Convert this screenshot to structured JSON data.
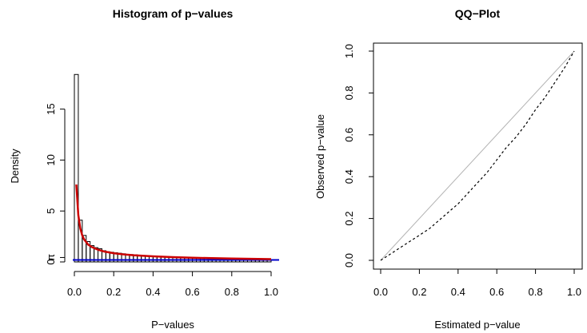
{
  "chart_data": [
    {
      "type": "bar",
      "subtype": "histogram-with-density",
      "title": "Histogram of p−values",
      "xlabel": "P−values",
      "ylabel": "Density",
      "xlim": [
        0,
        1
      ],
      "ylim": [
        0,
        18.5
      ],
      "x_ticks": [
        0,
        0.2,
        0.4,
        0.6,
        0.8,
        1
      ],
      "x_tick_labels": [
        "0.0",
        "0.2",
        "0.4",
        "0.6",
        "0.8",
        "1.0"
      ],
      "y_ticks": [
        0,
        5,
        10,
        15
      ],
      "y_tick_labels": [
        "0",
        "5",
        "10",
        "15"
      ],
      "y_extra_label": {
        "value": 0.2,
        "text": "π"
      },
      "bin_width": 0.02,
      "bin_edges_start": 0,
      "values": [
        18.4,
        4.1,
        2.6,
        2.0,
        1.6,
        1.4,
        1.3,
        1.1,
        1.0,
        0.95,
        0.9,
        0.85,
        0.8,
        0.75,
        0.72,
        0.7,
        0.66,
        0.63,
        0.6,
        0.58,
        0.56,
        0.54,
        0.52,
        0.5,
        0.48,
        0.46,
        0.44,
        0.43,
        0.42,
        0.4,
        0.39,
        0.38,
        0.37,
        0.36,
        0.35,
        0.34,
        0.33,
        0.32,
        0.31,
        0.3,
        0.29,
        0.28,
        0.27,
        0.27,
        0.26,
        0.25,
        0.25,
        0.24,
        0.24,
        0.23
      ],
      "density_curve": {
        "color": "#cc0000",
        "x": [
          0.01,
          0.02,
          0.03,
          0.04,
          0.05,
          0.07,
          0.09,
          0.12,
          0.15,
          0.2,
          0.25,
          0.3,
          0.4,
          0.5,
          0.6,
          0.7,
          0.8,
          0.9,
          1.0
        ],
        "y": [
          7.6,
          4.6,
          3.3,
          2.6,
          2.2,
          1.7,
          1.45,
          1.2,
          1.03,
          0.85,
          0.74,
          0.66,
          0.55,
          0.47,
          0.41,
          0.37,
          0.33,
          0.3,
          0.27
        ]
      },
      "hline": {
        "value": 0.2,
        "color": "#0000cc"
      },
      "grid": false
    },
    {
      "type": "line",
      "title": "QQ−Plot",
      "xlabel": "Estimated p−value",
      "ylabel": "Observed p−value",
      "xlim": [
        0,
        1
      ],
      "ylim": [
        0,
        1
      ],
      "x_ticks": [
        0,
        0.2,
        0.4,
        0.6,
        0.8,
        1
      ],
      "x_tick_labels": [
        "0.0",
        "0.2",
        "0.4",
        "0.6",
        "0.8",
        "1.0"
      ],
      "y_ticks": [
        0,
        0.2,
        0.4,
        0.6,
        0.8,
        1
      ],
      "y_tick_labels": [
        "0.0",
        "0.2",
        "0.4",
        "0.6",
        "0.8",
        "1.0"
      ],
      "reference_line": {
        "x": [
          0,
          1
        ],
        "y": [
          0,
          1
        ],
        "color": "#b3b3b3"
      },
      "series": [
        {
          "style": "dashed",
          "color": "#000000",
          "x": [
            0,
            0.05,
            0.1,
            0.15,
            0.2,
            0.25,
            0.3,
            0.35,
            0.4,
            0.45,
            0.5,
            0.55,
            0.6,
            0.65,
            0.7,
            0.75,
            0.8,
            0.85,
            0.9,
            0.95,
            1
          ],
          "y": [
            0,
            0.03,
            0.06,
            0.09,
            0.12,
            0.15,
            0.19,
            0.23,
            0.27,
            0.32,
            0.37,
            0.42,
            0.48,
            0.54,
            0.59,
            0.65,
            0.72,
            0.78,
            0.85,
            0.92,
            1.0
          ]
        }
      ],
      "grid": false
    }
  ]
}
